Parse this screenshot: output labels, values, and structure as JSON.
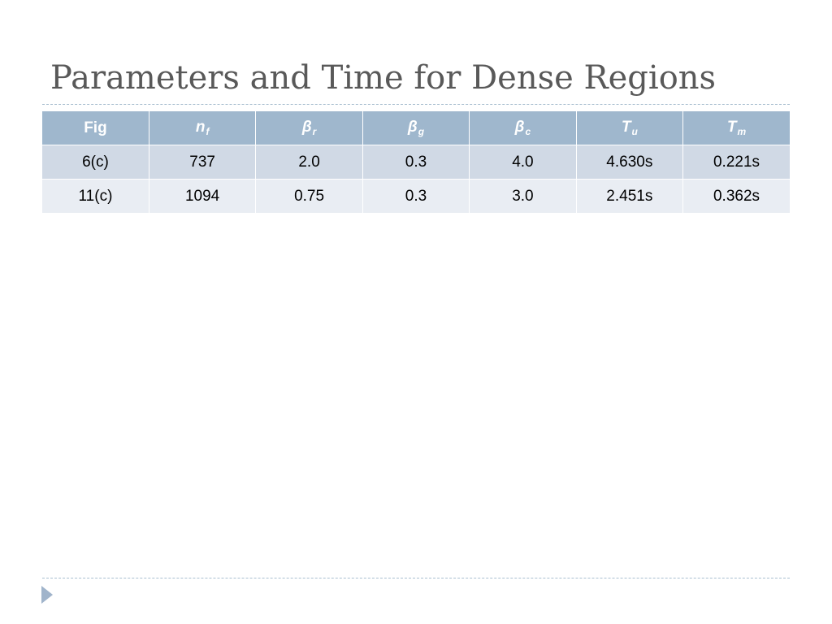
{
  "slide": {
    "title": "Parameters and Time for Dense Regions"
  },
  "table": {
    "headers": [
      {
        "symbol": "Fig",
        "sub": ""
      },
      {
        "symbol": "n",
        "sub": "f"
      },
      {
        "symbol": "β",
        "sub": "r"
      },
      {
        "symbol": "β",
        "sub": "g"
      },
      {
        "symbol": "β",
        "sub": "c"
      },
      {
        "symbol": "T",
        "sub": "u"
      },
      {
        "symbol": "T",
        "sub": "m"
      }
    ],
    "rows": [
      [
        "6(c)",
        "737",
        "2.0",
        "0.3",
        "4.0",
        "4.630s",
        "0.221s"
      ],
      [
        "11(c)",
        "1094",
        "0.75",
        "0.3",
        "3.0",
        "2.451s",
        "0.362s"
      ]
    ]
  },
  "colors": {
    "header_bg": "#9fb7cd",
    "row_odd_bg": "#d0d9e5",
    "row_even_bg": "#e9edf3",
    "title_text": "#595959",
    "bullet_marker": "#a0b4cb"
  },
  "icons": {
    "footer_marker": "triangle-bullet-icon"
  }
}
